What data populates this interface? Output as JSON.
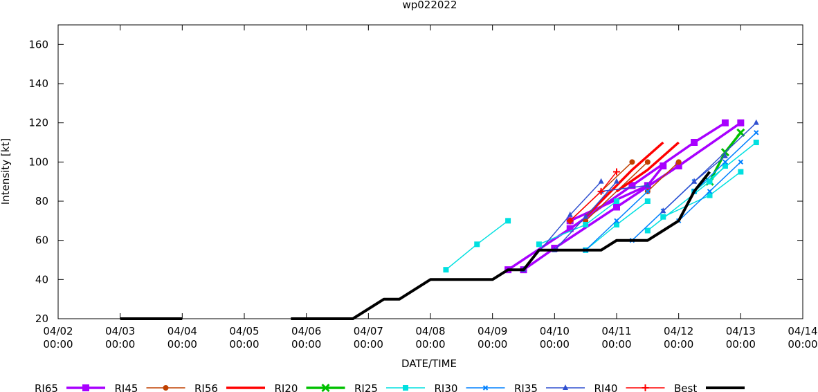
{
  "chart_data": {
    "type": "line",
    "title": "wp022022",
    "xlabel": "DATE/TIME",
    "ylabel": "Intensity [kt]",
    "xlim": [
      "2022-04-02T00:00",
      "2022-04-14T00:00"
    ],
    "ylim": [
      20,
      170
    ],
    "y_ticks": [
      20,
      40,
      60,
      80,
      100,
      120,
      140,
      160
    ],
    "x_ticks": [
      {
        "x": "2022-04-02T00:00",
        "date": "04/02",
        "time": "00:00"
      },
      {
        "x": "2022-04-03T00:00",
        "date": "04/03",
        "time": "00:00"
      },
      {
        "x": "2022-04-04T00:00",
        "date": "04/04",
        "time": "00:00"
      },
      {
        "x": "2022-04-05T00:00",
        "date": "04/05",
        "time": "00:00"
      },
      {
        "x": "2022-04-06T00:00",
        "date": "04/06",
        "time": "00:00"
      },
      {
        "x": "2022-04-07T00:00",
        "date": "04/07",
        "time": "00:00"
      },
      {
        "x": "2022-04-08T00:00",
        "date": "04/08",
        "time": "00:00"
      },
      {
        "x": "2022-04-09T00:00",
        "date": "04/09",
        "time": "00:00"
      },
      {
        "x": "2022-04-10T00:00",
        "date": "04/10",
        "time": "00:00"
      },
      {
        "x": "2022-04-11T00:00",
        "date": "04/11",
        "time": "00:00"
      },
      {
        "x": "2022-04-12T00:00",
        "date": "04/12",
        "time": "00:00"
      },
      {
        "x": "2022-04-13T00:00",
        "date": "04/13",
        "time": "00:00"
      },
      {
        "x": "2022-04-14T00:00",
        "date": "04/14",
        "time": "00:00"
      }
    ],
    "grid": false,
    "legend_position": "bottom",
    "series": [
      {
        "name": "RI65",
        "color": "#a800ff",
        "marker": "square",
        "thick": true,
        "tracks": [
          [
            [
              "2022-04-09T06:00",
              45
            ],
            [
              "2022-04-10T06:00",
              66
            ],
            [
              "2022-04-11T06:00",
              88
            ],
            [
              "2022-04-12T06:00",
              110
            ],
            [
              "2022-04-12T18:00",
              120
            ]
          ],
          [
            [
              "2022-04-09T12:00",
              45
            ],
            [
              "2022-04-10T00:00",
              56
            ],
            [
              "2022-04-11T00:00",
              77
            ],
            [
              "2022-04-12T00:00",
              98
            ],
            [
              "2022-04-13T00:00",
              120
            ]
          ],
          [
            [
              "2022-04-10T06:00",
              70
            ],
            [
              "2022-04-11T12:00",
              88
            ],
            [
              "2022-04-11T18:00",
              98
            ]
          ]
        ]
      },
      {
        "name": "RI45",
        "color": "#c04000",
        "marker": "circle",
        "thick": false,
        "tracks": [
          [
            [
              "2022-04-10T06:00",
              70
            ],
            [
              "2022-04-11T06:00",
              100
            ]
          ],
          [
            [
              "2022-04-10T12:00",
              70
            ],
            [
              "2022-04-11T12:00",
              100
            ]
          ],
          [
            [
              "2022-04-11T12:00",
              85
            ],
            [
              "2022-04-12T00:00",
              100
            ]
          ]
        ]
      },
      {
        "name": "RI56",
        "color": "#ff0000",
        "marker": "none",
        "thick": true,
        "tracks": [
          [
            [
              "2022-04-10T12:00",
              72
            ],
            [
              "2022-04-11T06:00",
              96
            ],
            [
              "2022-04-11T18:00",
              110
            ]
          ],
          [
            [
              "2022-04-11T00:00",
              85
            ],
            [
              "2022-04-11T12:00",
              96
            ],
            [
              "2022-04-12T00:00",
              110
            ]
          ]
        ]
      },
      {
        "name": "RI20",
        "color": "#00c000",
        "marker": "cross",
        "thick": true,
        "tracks": [
          [
            [
              "2022-04-12T12:00",
              90
            ],
            [
              "2022-04-12T18:00",
              105
            ],
            [
              "2022-04-13T00:00",
              115
            ]
          ]
        ]
      },
      {
        "name": "RI25",
        "color": "#00e0e0",
        "marker": "square",
        "thick": false,
        "tracks": [
          [
            [
              "2022-04-08T06:00",
              45
            ],
            [
              "2022-04-08T18:00",
              58
            ],
            [
              "2022-04-09T06:00",
              70
            ]
          ],
          [
            [
              "2022-04-09T18:00",
              58
            ],
            [
              "2022-04-10T12:00",
              68
            ],
            [
              "2022-04-11T00:00",
              80
            ]
          ],
          [
            [
              "2022-04-10T12:00",
              55
            ],
            [
              "2022-04-11T00:00",
              68
            ],
            [
              "2022-04-11T12:00",
              80
            ]
          ],
          [
            [
              "2022-04-11T12:00",
              65
            ],
            [
              "2022-04-12T12:00",
              90
            ],
            [
              "2022-04-12T18:00",
              98
            ]
          ],
          [
            [
              "2022-04-11T18:00",
              72
            ],
            [
              "2022-04-12T12:00",
              83
            ],
            [
              "2022-04-13T00:00",
              95
            ]
          ],
          [
            [
              "2022-04-12T06:00",
              85
            ],
            [
              "2022-04-13T06:00",
              110
            ]
          ]
        ]
      },
      {
        "name": "RI30",
        "color": "#0080ff",
        "marker": "x",
        "thick": false,
        "tracks": [
          [
            [
              "2022-04-10T12:00",
              55
            ],
            [
              "2022-04-11T00:00",
              70
            ],
            [
              "2022-04-11T12:00",
              85
            ]
          ],
          [
            [
              "2022-04-11T06:00",
              60
            ],
            [
              "2022-04-11T18:00",
              75
            ],
            [
              "2022-04-12T06:00",
              90
            ]
          ],
          [
            [
              "2022-04-12T00:00",
              70
            ],
            [
              "2022-04-12T12:00",
              85
            ],
            [
              "2022-04-13T00:00",
              100
            ]
          ],
          [
            [
              "2022-04-12T06:00",
              85
            ],
            [
              "2022-04-12T18:00",
              100
            ],
            [
              "2022-04-13T06:00",
              115
            ]
          ]
        ]
      },
      {
        "name": "RI35",
        "color": "#3050d0",
        "marker": "triangle",
        "thick": false,
        "tracks": [
          [
            [
              "2022-04-09T12:00",
              45
            ],
            [
              "2022-04-10T06:00",
              73
            ],
            [
              "2022-04-10T18:00",
              90
            ]
          ],
          [
            [
              "2022-04-10T00:00",
              55
            ],
            [
              "2022-04-10T12:00",
              72
            ],
            [
              "2022-04-11T00:00",
              90
            ]
          ],
          [
            [
              "2022-04-10T18:00",
              85
            ],
            [
              "2022-04-11T12:00",
              88
            ]
          ],
          [
            [
              "2022-04-11T18:00",
              75
            ],
            [
              "2022-04-12T06:00",
              90
            ],
            [
              "2022-04-12T18:00",
              103
            ]
          ],
          [
            [
              "2022-04-12T06:00",
              90
            ],
            [
              "2022-04-13T06:00",
              120
            ]
          ]
        ]
      },
      {
        "name": "RI40",
        "color": "#ff0000",
        "marker": "plus",
        "thick": false,
        "tracks": [
          [
            [
              "2022-04-10T06:00",
              70
            ],
            [
              "2022-04-10T18:00",
              85
            ],
            [
              "2022-04-11T00:00",
              95
            ]
          ]
        ]
      },
      {
        "name": "Best",
        "color": "#000000",
        "marker": "none",
        "thick": true,
        "width": 4,
        "tracks": [
          [
            [
              "2022-04-03T00:00",
              20
            ],
            [
              "2022-04-04T00:00",
              20
            ]
          ],
          [
            [
              "2022-04-05T18:00",
              20
            ],
            [
              "2022-04-06T18:00",
              20
            ],
            [
              "2022-04-07T06:00",
              30
            ],
            [
              "2022-04-07T12:00",
              30
            ],
            [
              "2022-04-08T00:00",
              40
            ],
            [
              "2022-04-09T00:00",
              40
            ],
            [
              "2022-04-09T06:00",
              45
            ],
            [
              "2022-04-09T12:00",
              45
            ],
            [
              "2022-04-09T18:00",
              55
            ],
            [
              "2022-04-10T12:00",
              55
            ],
            [
              "2022-04-10T18:00",
              55
            ],
            [
              "2022-04-11T00:00",
              60
            ],
            [
              "2022-04-11T12:00",
              60
            ],
            [
              "2022-04-11T18:00",
              65
            ],
            [
              "2022-04-12T00:00",
              70
            ],
            [
              "2022-04-12T06:00",
              85
            ],
            [
              "2022-04-12T12:00",
              95
            ]
          ]
        ]
      }
    ]
  }
}
